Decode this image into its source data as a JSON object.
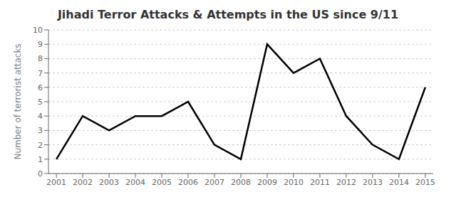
{
  "chart_data": {
    "type": "line",
    "title": "Jihadi Terror Attacks & Attempts in the US since 9/11",
    "ylabel": "Number of terrorist attacks",
    "x": [
      2001,
      2002,
      2003,
      2004,
      2005,
      2006,
      2007,
      2008,
      2009,
      2010,
      2011,
      2012,
      2013,
      2014,
      2015
    ],
    "values": [
      1,
      4,
      3,
      4,
      4,
      5,
      2,
      1,
      9,
      7,
      8,
      4,
      2,
      1,
      6
    ],
    "xlim": [
      2000.7,
      2015.3
    ],
    "xticks": [
      2001,
      2002,
      2003,
      2004,
      2005,
      2006,
      2007,
      2008,
      2009,
      2010,
      2011,
      2012,
      2013,
      2014,
      2015
    ],
    "ylim": [
      0,
      10
    ],
    "yticks": [
      0,
      1,
      2,
      3,
      4,
      5,
      6,
      7,
      8,
      9,
      10
    ],
    "color": "#000000",
    "grid": "y"
  }
}
